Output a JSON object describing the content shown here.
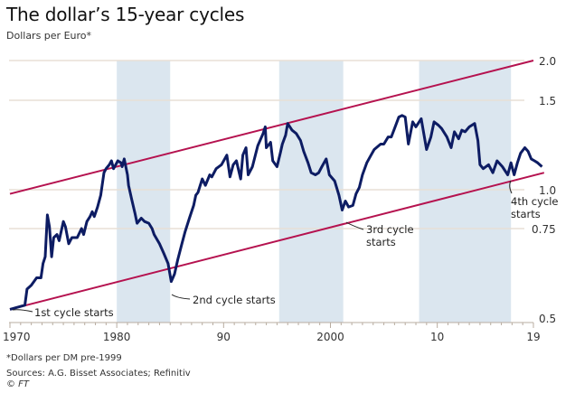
{
  "title": "The dollar’s 15-year cycles",
  "subtitle": "Dollars per Euro*",
  "footnote": "*Dollars per DM pre-1999",
  "sources": "Sources: A.G. Bisset Associates; Refinitiv",
  "copyright": "© FT",
  "colors": {
    "series": "#0d1c63",
    "channel": "#b5124f",
    "shade": "#dbe6ef",
    "grid": "#e8dfd6",
    "axis": "#b8aca0"
  },
  "chart_data": {
    "type": "line",
    "title": "The dollar’s 15-year cycles",
    "ylabel": "Dollars per Euro*",
    "xlabel": "",
    "xlim": [
      1970,
      2019
    ],
    "ylim": [
      0.5,
      2.0
    ],
    "yscale": "log",
    "grid": true,
    "y_ticks": [
      0.5,
      0.75,
      1.0,
      1.5,
      2.0
    ],
    "y_tick_labels": [
      "0.5",
      "0.75",
      "1.0",
      "1.5",
      "2.0"
    ],
    "x_ticks": [
      1970,
      1980,
      1990,
      2000,
      2010,
      2019
    ],
    "x_tick_labels": [
      "1970",
      "1980",
      "90",
      "2000",
      "10",
      "19"
    ],
    "shaded_periods": [
      [
        1980,
        1985
      ],
      [
        1995.2,
        2001.2
      ],
      [
        2008.3,
        2016.9
      ]
    ],
    "series": [
      {
        "name": "Dollars per Euro",
        "points": [
          [
            1970.0,
            0.52
          ],
          [
            1971.4,
            0.53
          ],
          [
            1971.6,
            0.57
          ],
          [
            1972.0,
            0.58
          ],
          [
            1972.5,
            0.6
          ],
          [
            1972.9,
            0.6
          ],
          [
            1973.1,
            0.64
          ],
          [
            1973.3,
            0.66
          ],
          [
            1973.5,
            0.83
          ],
          [
            1973.7,
            0.76
          ],
          [
            1973.9,
            0.66
          ],
          [
            1974.1,
            0.72
          ],
          [
            1974.4,
            0.73
          ],
          [
            1974.6,
            0.71
          ],
          [
            1975.0,
            0.79
          ],
          [
            1975.2,
            0.76
          ],
          [
            1975.5,
            0.7
          ],
          [
            1975.8,
            0.72
          ],
          [
            1976.3,
            0.72
          ],
          [
            1976.7,
            0.75
          ],
          [
            1976.9,
            0.73
          ],
          [
            1977.2,
            0.79
          ],
          [
            1977.5,
            0.82
          ],
          [
            1977.7,
            0.85
          ],
          [
            1977.9,
            0.82
          ],
          [
            1978.2,
            0.88
          ],
          [
            1978.5,
            0.96
          ],
          [
            1978.8,
            1.08
          ],
          [
            1979.0,
            1.1
          ],
          [
            1979.3,
            1.12
          ],
          [
            1979.5,
            1.14
          ],
          [
            1979.7,
            1.1
          ],
          [
            1980.1,
            1.14
          ],
          [
            1980.4,
            1.13
          ],
          [
            1980.5,
            1.11
          ],
          [
            1980.7,
            1.15
          ],
          [
            1981.0,
            1.07
          ],
          [
            1981.1,
            1.02
          ],
          [
            1981.4,
            0.93
          ],
          [
            1981.7,
            0.84
          ],
          [
            1981.9,
            0.78
          ],
          [
            1982.3,
            0.81
          ],
          [
            1982.6,
            0.79
          ],
          [
            1983.0,
            0.78
          ],
          [
            1983.3,
            0.75
          ],
          [
            1983.5,
            0.73
          ],
          [
            1984.0,
            0.7
          ],
          [
            1984.4,
            0.67
          ],
          [
            1984.8,
            0.64
          ],
          [
            1985.1,
            0.59
          ],
          [
            1985.4,
            0.61
          ],
          [
            1985.7,
            0.65
          ],
          [
            1986.1,
            0.7
          ],
          [
            1986.4,
            0.74
          ],
          [
            1986.8,
            0.81
          ],
          [
            1987.2,
            0.89
          ],
          [
            1987.4,
            0.96
          ],
          [
            1987.6,
            0.98
          ],
          [
            1988.0,
            1.05
          ],
          [
            1988.3,
            1.02
          ],
          [
            1988.7,
            1.07
          ],
          [
            1988.9,
            1.06
          ],
          [
            1989.3,
            1.1
          ],
          [
            1989.8,
            1.12
          ],
          [
            1990.3,
            1.17
          ],
          [
            1990.6,
            1.06
          ],
          [
            1990.9,
            1.12
          ],
          [
            1991.2,
            1.14
          ],
          [
            1991.6,
            1.05
          ],
          [
            1991.8,
            1.17
          ],
          [
            1992.1,
            1.21
          ],
          [
            1992.3,
            1.07
          ],
          [
            1992.7,
            1.11
          ],
          [
            1993.2,
            1.22
          ],
          [
            1993.7,
            1.29
          ],
          [
            1993.9,
            1.33
          ],
          [
            1994.0,
            1.21
          ],
          [
            1994.4,
            1.24
          ],
          [
            1994.6,
            1.14
          ],
          [
            1995.0,
            1.11
          ],
          [
            1995.3,
            1.18
          ],
          [
            1995.5,
            1.23
          ],
          [
            1995.8,
            1.28
          ],
          [
            1996.0,
            1.35
          ],
          [
            1996.4,
            1.31
          ],
          [
            1996.8,
            1.29
          ],
          [
            1997.2,
            1.25
          ],
          [
            1997.5,
            1.19
          ],
          [
            1997.9,
            1.13
          ],
          [
            1998.2,
            1.08
          ],
          [
            1998.6,
            1.07
          ],
          [
            1998.9,
            1.08
          ],
          [
            1999.2,
            1.11
          ],
          [
            1999.6,
            1.15
          ],
          [
            1999.9,
            1.07
          ],
          [
            2000.4,
            1.04
          ],
          [
            2000.8,
            0.96
          ],
          [
            2001.1,
            0.86
          ],
          [
            2001.4,
            0.92
          ],
          [
            2001.7,
            0.88
          ],
          [
            2002.1,
            0.89
          ],
          [
            2002.4,
            0.97
          ],
          [
            2002.7,
            1.01
          ],
          [
            2003.0,
            1.07
          ],
          [
            2003.4,
            1.13
          ],
          [
            2003.8,
            1.17
          ],
          [
            2004.1,
            1.2
          ],
          [
            2004.7,
            1.23
          ],
          [
            2005.0,
            1.23
          ],
          [
            2005.4,
            1.27
          ],
          [
            2005.7,
            1.27
          ],
          [
            2006.0,
            1.32
          ],
          [
            2006.4,
            1.39
          ],
          [
            2006.7,
            1.4
          ],
          [
            2007.0,
            1.39
          ],
          [
            2007.3,
            1.23
          ],
          [
            2007.7,
            1.36
          ],
          [
            2008.0,
            1.33
          ],
          [
            2008.5,
            1.38
          ],
          [
            2009.0,
            1.2
          ],
          [
            2009.4,
            1.27
          ],
          [
            2009.7,
            1.36
          ],
          [
            2010.1,
            1.34
          ],
          [
            2010.4,
            1.32
          ],
          [
            2010.9,
            1.27
          ],
          [
            2011.3,
            1.21
          ],
          [
            2011.6,
            1.3
          ],
          [
            2012.0,
            1.26
          ],
          [
            2012.3,
            1.31
          ],
          [
            2012.6,
            1.3
          ],
          [
            2013.0,
            1.33
          ],
          [
            2013.5,
            1.35
          ],
          [
            2013.8,
            1.25
          ],
          [
            2014.0,
            1.12
          ],
          [
            2014.3,
            1.1
          ],
          [
            2014.8,
            1.12
          ],
          [
            2015.2,
            1.08
          ],
          [
            2015.6,
            1.14
          ],
          [
            2016.1,
            1.11
          ],
          [
            2016.6,
            1.07
          ],
          [
            2016.9,
            1.13
          ],
          [
            2017.2,
            1.07
          ],
          [
            2017.5,
            1.13
          ],
          [
            2017.8,
            1.18
          ],
          [
            2018.2,
            1.21
          ],
          [
            2018.5,
            1.19
          ],
          [
            2018.8,
            1.15
          ],
          [
            2019.1,
            1.14
          ],
          [
            2019.4,
            1.13
          ],
          [
            2019.8,
            1.11
          ]
        ]
      },
      {
        "name": "Upper channel",
        "points": [
          [
            1970,
            0.97
          ],
          [
            2019,
            2.0
          ]
        ]
      },
      {
        "name": "Lower channel",
        "points": [
          [
            1970,
            0.52
          ],
          [
            2020,
            1.08
          ]
        ]
      }
    ],
    "annotations": [
      {
        "text": "1st cycle starts",
        "x": 1970.0,
        "y": 0.52
      },
      {
        "text": "2nd cycle starts",
        "x": 1985.1,
        "y": 0.59
      },
      {
        "text": "3rd cycle starts",
        "x": 2001.2,
        "y": 0.86
      },
      {
        "text": "4th cycle starts",
        "x": 2016.9,
        "y": 1.05
      }
    ]
  }
}
